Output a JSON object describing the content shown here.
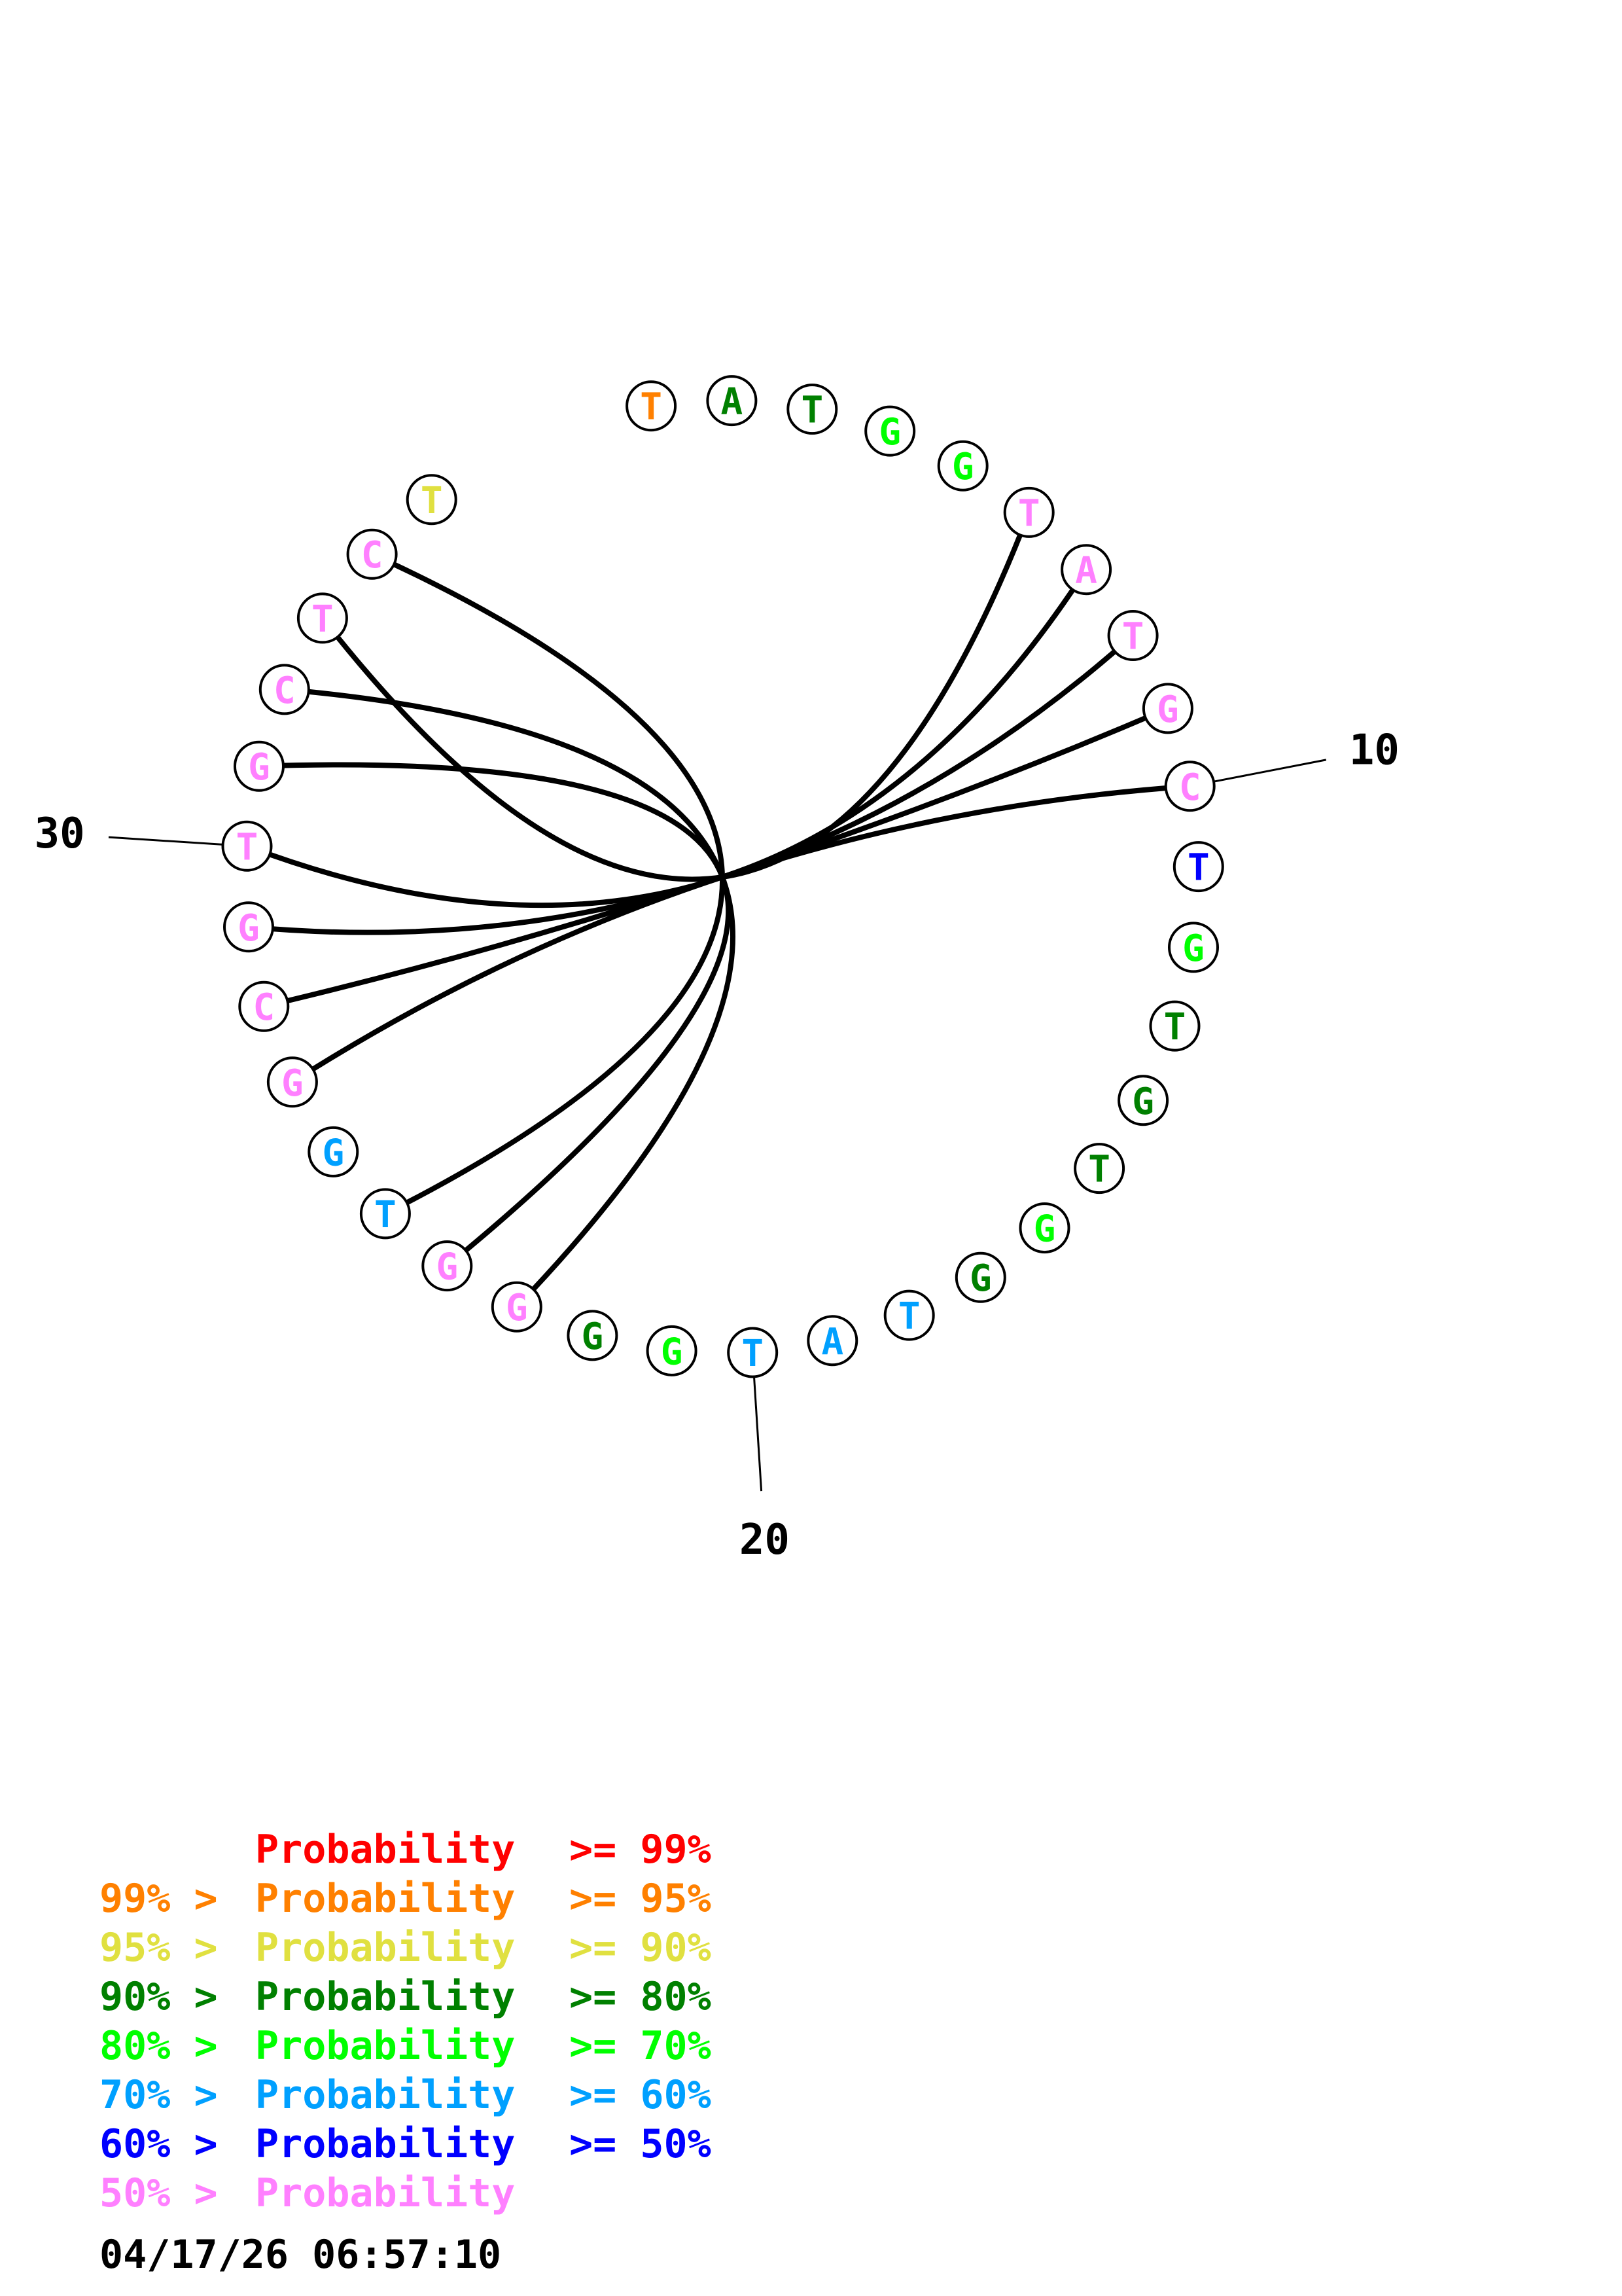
{
  "diagram": {
    "sequence": [
      "T",
      "A",
      "T",
      "G",
      "G",
      "T",
      "A",
      "T",
      "G",
      "C",
      "T",
      "G",
      "T",
      "G",
      "T",
      "G",
      "G",
      "T",
      "A",
      "T",
      "G",
      "G",
      "G",
      "G",
      "T",
      "G",
      "G",
      "C",
      "G",
      "T",
      "G",
      "C",
      "T",
      "C",
      "T"
    ],
    "base_colors": [
      "#ff8000",
      "#008000",
      "#008000",
      "#00ff00",
      "#00ff00",
      "#ff80ff",
      "#ff80ff",
      "#ff80ff",
      "#ff80ff",
      "#ff80ff",
      "#0000ff",
      "#00ff00",
      "#008000",
      "#008000",
      "#008000",
      "#00ff00",
      "#008000",
      "#00a0ff",
      "#00a0ff",
      "#00a0ff",
      "#00ff00",
      "#008000",
      "#ff80ff",
      "#ff80ff",
      "#00a0ff",
      "#00a0ff",
      "#ff80ff",
      "#ff80ff",
      "#ff80ff",
      "#ff80ff",
      "#ff80ff",
      "#ff80ff",
      "#ff80ff",
      "#ff80ff",
      "#e0e040"
    ],
    "pairs": [
      [
        6,
        33
      ],
      [
        7,
        30
      ],
      [
        8,
        29
      ],
      [
        9,
        28
      ],
      [
        10,
        27
      ],
      [
        23,
        32
      ],
      [
        24,
        31
      ],
      [
        25,
        34
      ]
    ],
    "position_labels": [
      {
        "position": 10,
        "label": "10"
      },
      {
        "position": 20,
        "label": "20"
      },
      {
        "position": 30,
        "label": "30"
      }
    ]
  },
  "legend": [
    {
      "prefix": "",
      "middle": "Probability",
      "suffix": ">= 99%",
      "color": "#ff0000"
    },
    {
      "prefix": "99% >",
      "middle": "Probability",
      "suffix": ">= 95%",
      "color": "#ff8000"
    },
    {
      "prefix": "95% >",
      "middle": "Probability",
      "suffix": ">= 90%",
      "color": "#e0e040"
    },
    {
      "prefix": "90% >",
      "middle": "Probability",
      "suffix": ">= 80%",
      "color": "#008000"
    },
    {
      "prefix": "80% >",
      "middle": "Probability",
      "suffix": ">= 70%",
      "color": "#00ff00"
    },
    {
      "prefix": "70% >",
      "middle": "Probability",
      "suffix": ">= 60%",
      "color": "#00a0ff"
    },
    {
      "prefix": "60% >",
      "middle": "Probability",
      "suffix": ">= 50%",
      "color": "#0000ff"
    },
    {
      "prefix": "50% >",
      "middle": "Probability",
      "suffix": "",
      "color": "#ff80ff"
    }
  ],
  "timestamp": "04/17/26 06:57:10"
}
